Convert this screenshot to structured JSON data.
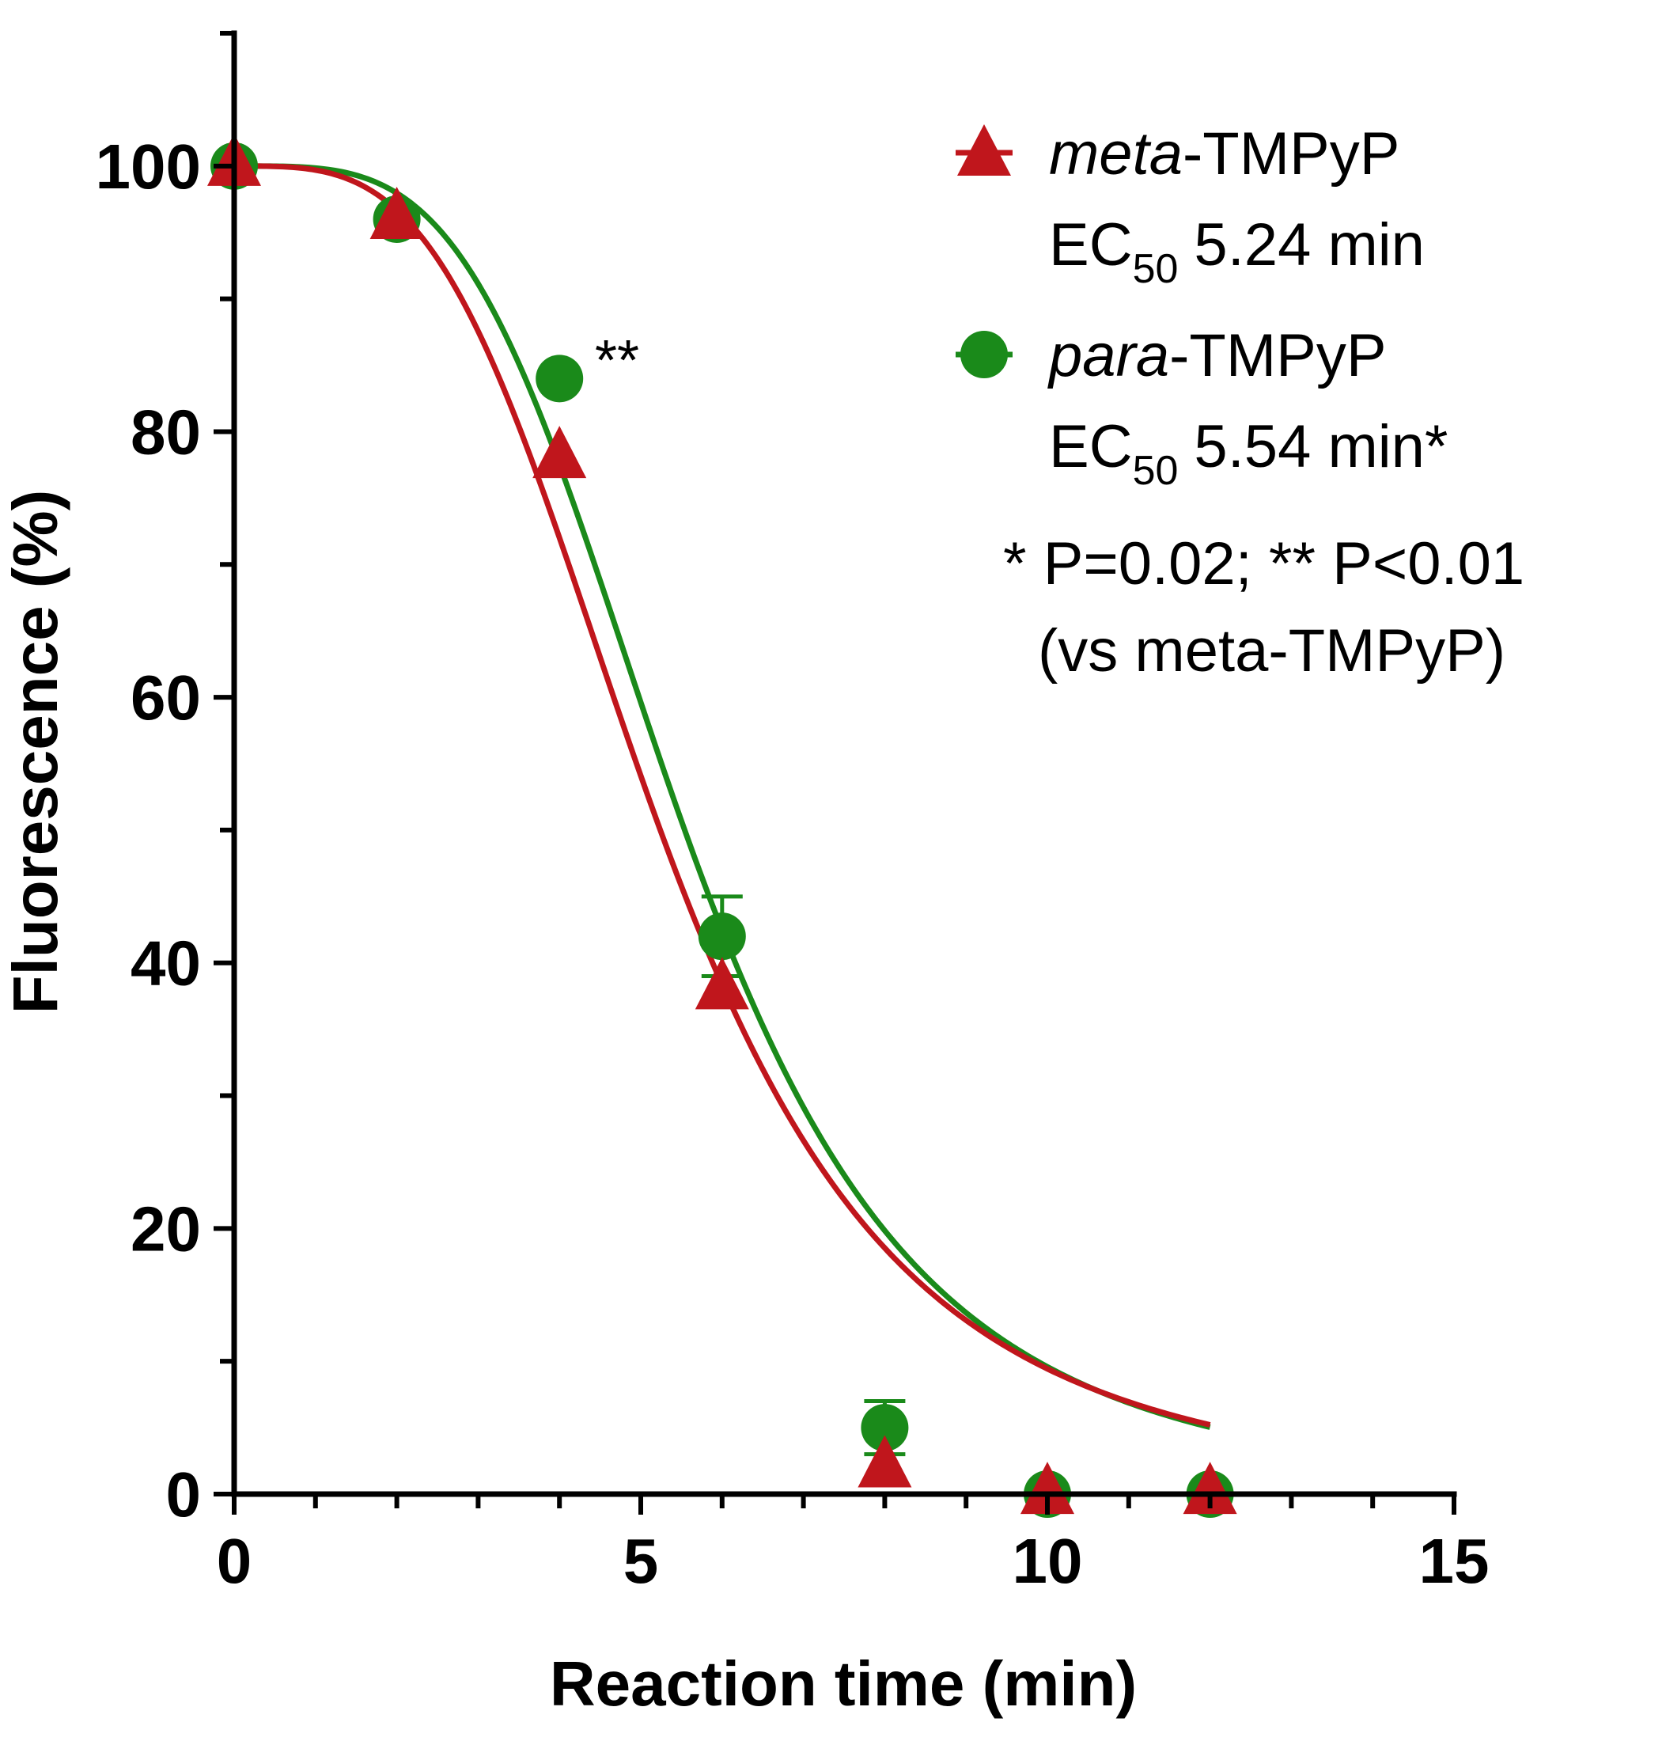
{
  "chart_data": {
    "type": "scatter",
    "xlabel": "Reaction time (min)",
    "ylabel": "Fluorescence (%)",
    "xlim": [
      0,
      15
    ],
    "ylim": [
      0,
      110
    ],
    "x_ticks": [
      0,
      5,
      10,
      15
    ],
    "y_ticks": [
      0,
      20,
      40,
      60,
      80,
      100
    ],
    "grid": false,
    "legend_position": "top-right",
    "series": [
      {
        "name_italic": "meta",
        "name_rest": "-TMPyP",
        "ec50_prefix": "EC",
        "ec50_sub": "50",
        "ec50_value": "5.24 min",
        "ec50": 5.24,
        "hill": 3.5,
        "color": "#c0161c",
        "marker": "triangle",
        "x": [
          0,
          2,
          4,
          6,
          8,
          10,
          12
        ],
        "y": [
          100,
          96,
          78,
          38,
          2,
          0,
          0
        ]
      },
      {
        "name_italic": "para",
        "name_rest": "-TMPyP",
        "ec50_prefix": "EC",
        "ec50_sub": "50",
        "ec50_value": "5.54 min*",
        "ec50": 5.54,
        "hill": 3.8,
        "color": "#1a8a1a",
        "marker": "circle",
        "x": [
          0,
          2,
          4,
          6,
          8,
          10,
          12
        ],
        "y": [
          100,
          96,
          84,
          42,
          5,
          0,
          0
        ],
        "error": [
          0,
          0,
          0,
          3,
          2,
          0,
          0
        ]
      }
    ],
    "annotations": [
      {
        "text": "**",
        "x": 4,
        "y": 84
      }
    ],
    "significance_note": "* P=0.02; ** P<0.01",
    "significance_note2": "(vs meta-TMPyP)"
  }
}
